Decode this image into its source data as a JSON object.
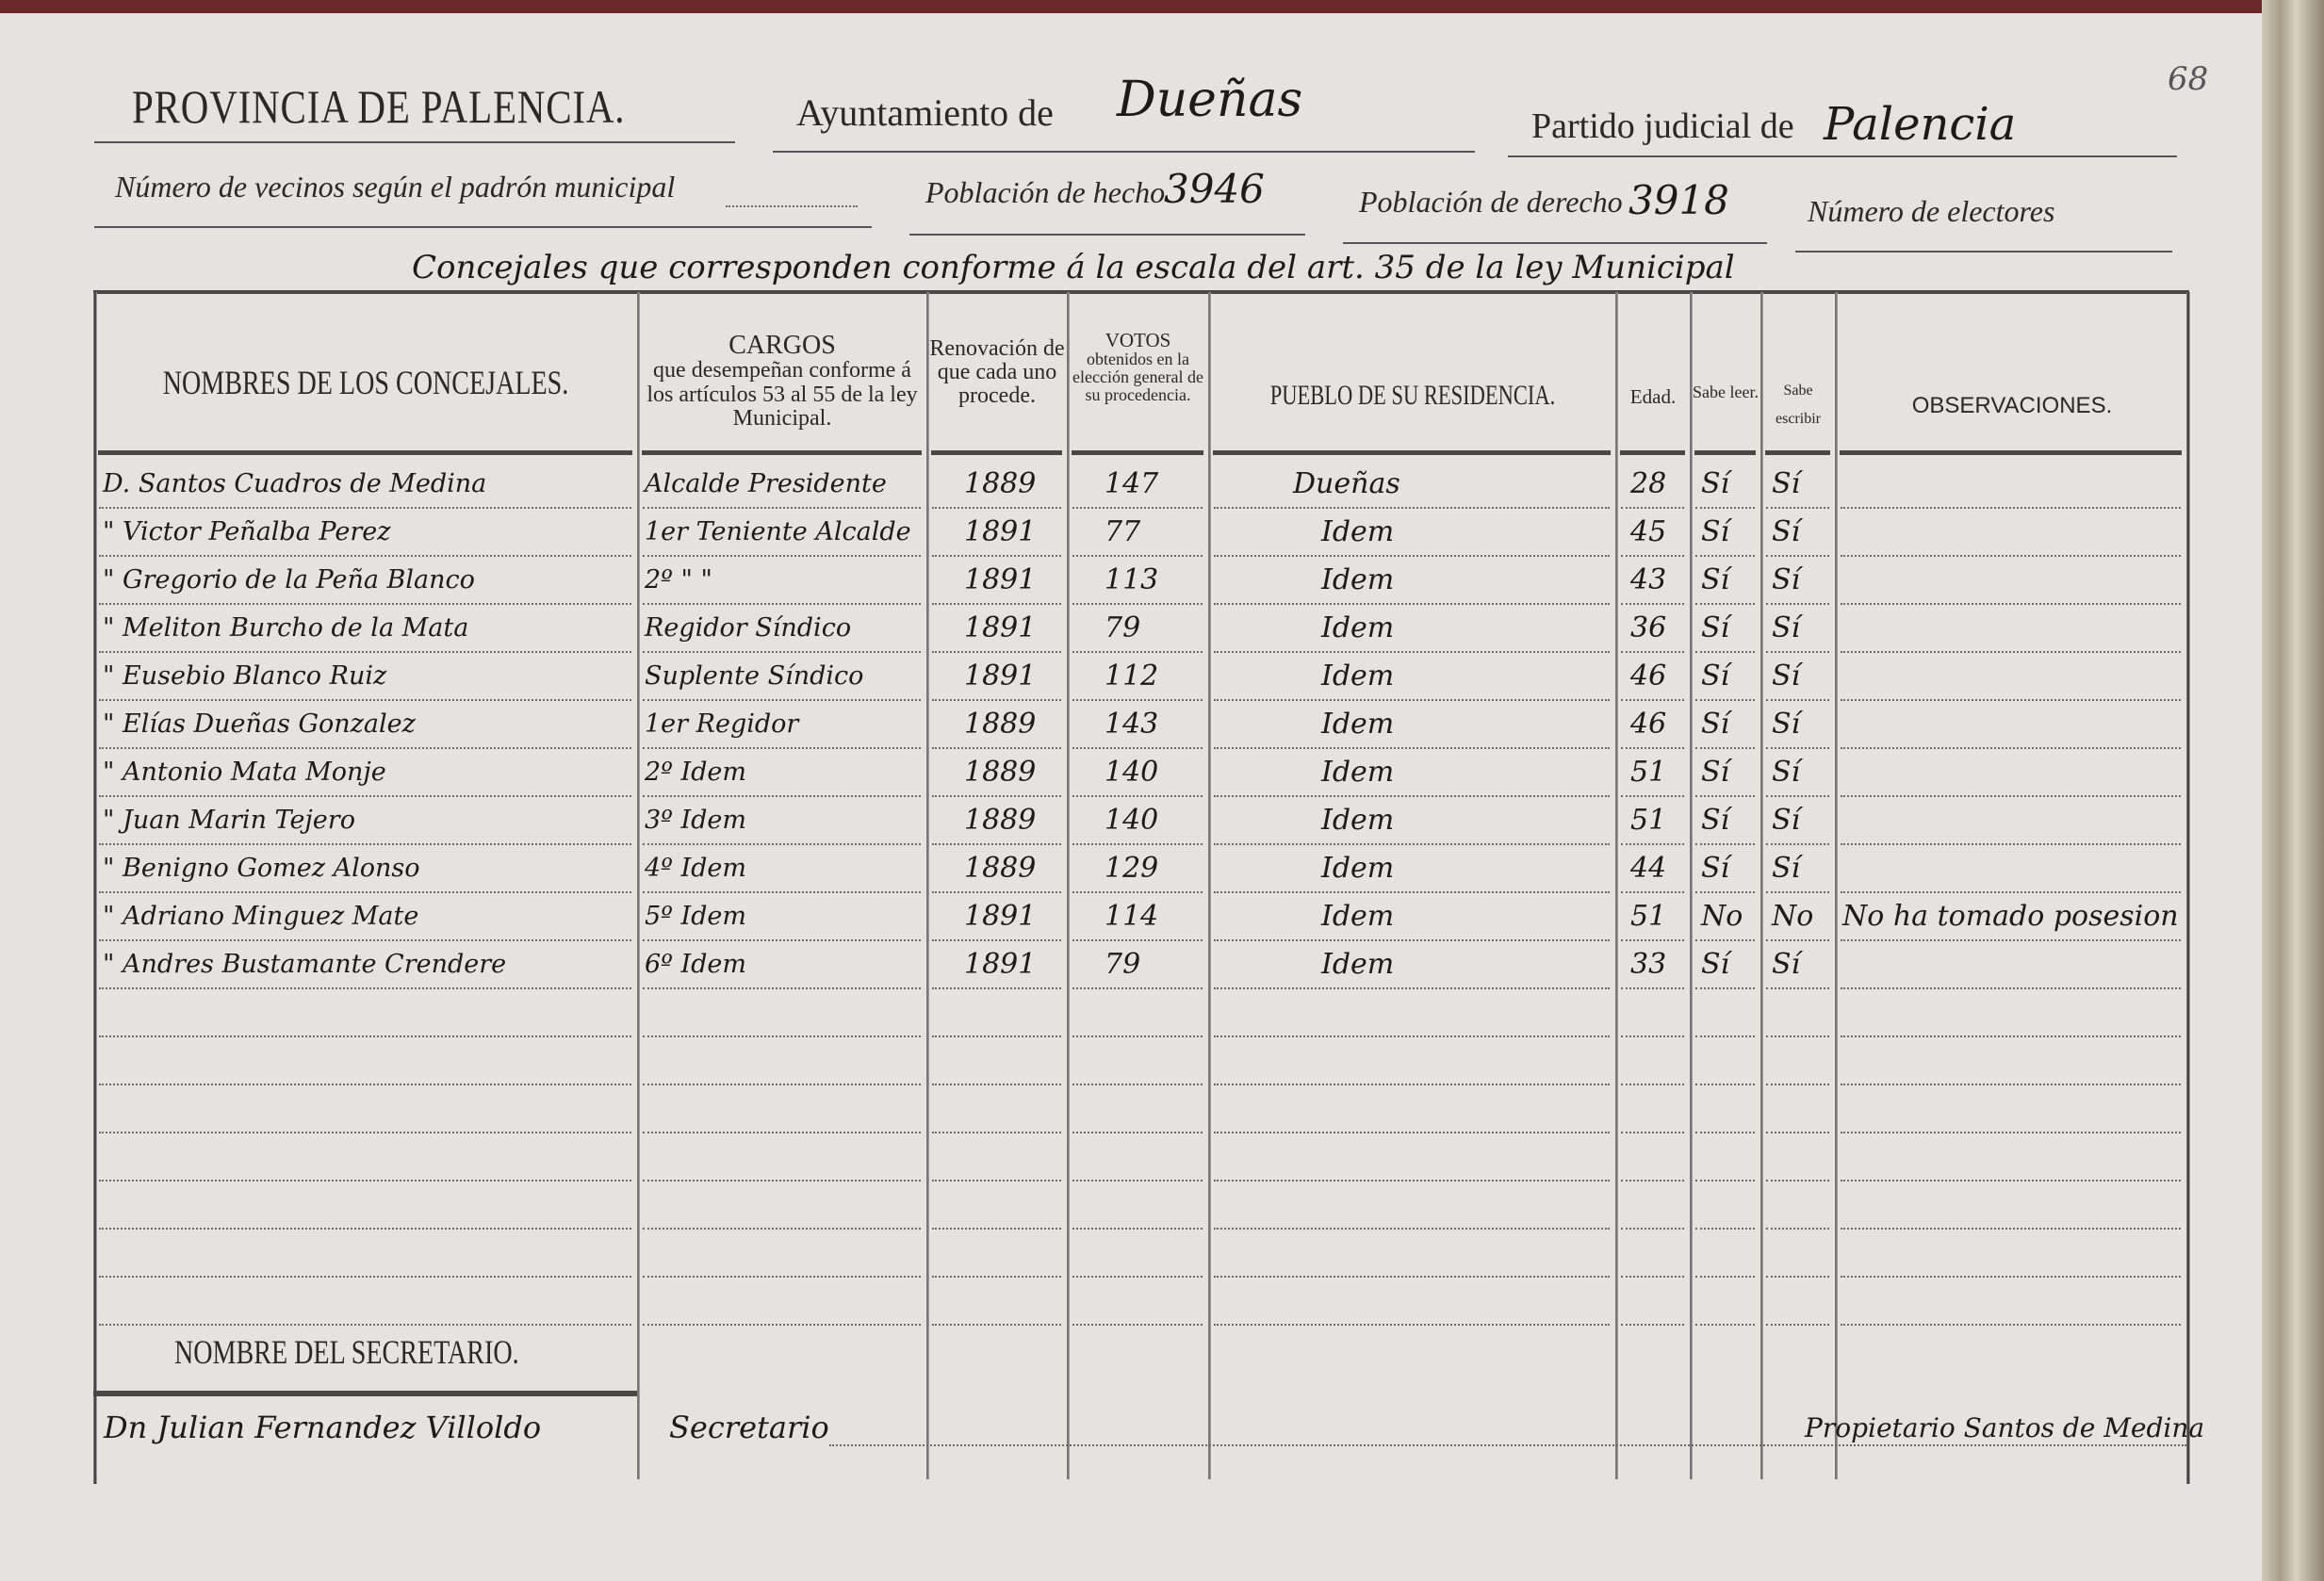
{
  "page_number": "68",
  "header": {
    "province": "PROVINCIA DE PALENCIA.",
    "ayuntamiento_label": "Ayuntamiento de",
    "ayuntamiento_value": "Dueñas",
    "partido_label": "Partido judicial de",
    "partido_value": "Palencia",
    "vecinos_label": "Número de vecinos según el padrón municipal",
    "vecinos_value": "",
    "hecho_label": "Población de hecho",
    "hecho_value": "3946",
    "derecho_label": "Población de derecho",
    "derecho_value": "3918",
    "electores_label": "Número de electores",
    "electores_value": "",
    "concejales_line": "Concejales que corresponden conforme á la escala del art. 35 de la ley Municipal"
  },
  "columns": {
    "nombres": "NOMBRES DE LOS CONCEJALES.",
    "cargos_title": "CARGOS",
    "cargos_sub": "que desempeñan conforme á los artículos 53 al 55 de la ley Municipal.",
    "renovacion": "Renovación de que cada uno procede.",
    "votos_title": "VOTOS",
    "votos_sub": "obtenidos en la elección general de su procedencia.",
    "pueblo": "PUEBLO DE SU RESIDENCIA.",
    "edad": "Edad.",
    "leer": "Sabe leer.",
    "escribir": "Sabe escribir",
    "observaciones": "OBSERVACIONES."
  },
  "rows": [
    {
      "nombre": "D. Santos Cuadros de Medina",
      "cargo": "Alcalde Presidente",
      "renovacion": "1889",
      "votos": "147",
      "pueblo": "Dueñas",
      "edad": "28",
      "leer": "Sí",
      "escribir": "Sí",
      "obs": ""
    },
    {
      "nombre": "\" Victor Peñalba Perez",
      "cargo": "1er Teniente Alcalde",
      "renovacion": "1891",
      "votos": "77",
      "pueblo": "Idem",
      "edad": "45",
      "leer": "Sí",
      "escribir": "Sí",
      "obs": ""
    },
    {
      "nombre": "\" Gregorio de la Peña Blanco",
      "cargo": "2º \"  \"",
      "renovacion": "1891",
      "votos": "113",
      "pueblo": "Idem",
      "edad": "43",
      "leer": "Sí",
      "escribir": "Sí",
      "obs": ""
    },
    {
      "nombre": "\" Meliton Burcho de la Mata",
      "cargo": "Regidor Síndico",
      "renovacion": "1891",
      "votos": "79",
      "pueblo": "Idem",
      "edad": "36",
      "leer": "Sí",
      "escribir": "Sí",
      "obs": ""
    },
    {
      "nombre": "\" Eusebio Blanco Ruiz",
      "cargo": "Suplente Síndico",
      "renovacion": "1891",
      "votos": "112",
      "pueblo": "Idem",
      "edad": "46",
      "leer": "Sí",
      "escribir": "Sí",
      "obs": ""
    },
    {
      "nombre": "\" Elías Dueñas Gonzalez",
      "cargo": "1er Regidor",
      "renovacion": "1889",
      "votos": "143",
      "pueblo": "Idem",
      "edad": "46",
      "leer": "Sí",
      "escribir": "Sí",
      "obs": ""
    },
    {
      "nombre": "\" Antonio Mata Monje",
      "cargo": "2º Idem",
      "renovacion": "1889",
      "votos": "140",
      "pueblo": "Idem",
      "edad": "51",
      "leer": "Sí",
      "escribir": "Sí",
      "obs": ""
    },
    {
      "nombre": "\" Juan Marin Tejero",
      "cargo": "3º Idem",
      "renovacion": "1889",
      "votos": "140",
      "pueblo": "Idem",
      "edad": "51",
      "leer": "Sí",
      "escribir": "Sí",
      "obs": ""
    },
    {
      "nombre": "\" Benigno Gomez Alonso",
      "cargo": "4º Idem",
      "renovacion": "1889",
      "votos": "129",
      "pueblo": "Idem",
      "edad": "44",
      "leer": "Sí",
      "escribir": "Sí",
      "obs": ""
    },
    {
      "nombre": "\" Adriano Minguez Mate",
      "cargo": "5º Idem",
      "renovacion": "1891",
      "votos": "114",
      "pueblo": "Idem",
      "edad": "51",
      "leer": "No",
      "escribir": "No",
      "obs": "No ha tomado posesion"
    },
    {
      "nombre": "\" Andres Bustamante Crendere",
      "cargo": "6º Idem",
      "renovacion": "1891",
      "votos": "79",
      "pueblo": "Idem",
      "edad": "33",
      "leer": "Sí",
      "escribir": "Sí",
      "obs": ""
    }
  ],
  "secretario": {
    "label": "NOMBRE DEL SECRETARIO.",
    "nombre": "Dn Julian Fernandez Villoldo",
    "cargo": "Secretario",
    "firma": "Propietario Santos de Medina"
  }
}
